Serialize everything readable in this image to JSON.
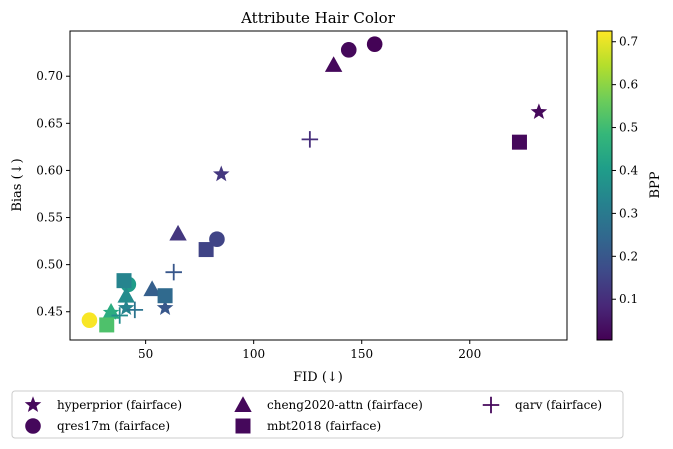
{
  "chart_data": {
    "type": "scatter",
    "title": "Attribute Hair Color",
    "xlabel": "FID (↓)",
    "ylabel": "Bias (↓)",
    "xlim": [
      15,
      245
    ],
    "ylim": [
      0.42,
      0.748
    ],
    "xticks": [
      50,
      100,
      150,
      200
    ],
    "yticks": [
      0.45,
      0.5,
      0.55,
      0.6,
      0.65,
      0.7
    ],
    "colorbar": {
      "label": "BPP",
      "colormap": "viridis",
      "range": [
        0.005,
        0.725
      ],
      "ticks": [
        0.1,
        0.2,
        0.3,
        0.4,
        0.5,
        0.6,
        0.7
      ]
    },
    "legend_placement": "below plot, 3 columns",
    "series": [
      {
        "name": "hyperprior (fairface)",
        "marker": "star",
        "points": [
          {
            "x": 232,
            "y": 0.662,
            "bpp": 0.02
          },
          {
            "x": 85,
            "y": 0.596,
            "bpp": 0.12
          },
          {
            "x": 59,
            "y": 0.454,
            "bpp": 0.2
          },
          {
            "x": 41,
            "y": 0.454,
            "bpp": 0.33
          },
          {
            "x": 34,
            "y": 0.449,
            "bpp": 0.44
          }
        ]
      },
      {
        "name": "qres17m (fairface)",
        "marker": "circle",
        "points": [
          {
            "x": 156,
            "y": 0.734,
            "bpp": 0.01
          },
          {
            "x": 144,
            "y": 0.728,
            "bpp": 0.02
          },
          {
            "x": 83,
            "y": 0.527,
            "bpp": 0.15
          },
          {
            "x": 42,
            "y": 0.479,
            "bpp": 0.4
          },
          {
            "x": 24,
            "y": 0.441,
            "bpp": 0.72
          }
        ]
      },
      {
        "name": "cheng2020-attn (fairface)",
        "marker": "triangle",
        "points": [
          {
            "x": 137,
            "y": 0.712,
            "bpp": 0.02
          },
          {
            "x": 65,
            "y": 0.533,
            "bpp": 0.12
          },
          {
            "x": 53,
            "y": 0.474,
            "bpp": 0.22
          },
          {
            "x": 41,
            "y": 0.467,
            "bpp": 0.35
          },
          {
            "x": 34,
            "y": 0.45,
            "bpp": 0.45
          }
        ]
      },
      {
        "name": "mbt2018 (fairface)",
        "marker": "square",
        "points": [
          {
            "x": 223,
            "y": 0.63,
            "bpp": 0.02
          },
          {
            "x": 78,
            "y": 0.516,
            "bpp": 0.15
          },
          {
            "x": 59,
            "y": 0.467,
            "bpp": 0.25
          },
          {
            "x": 40,
            "y": 0.483,
            "bpp": 0.33
          },
          {
            "x": 32,
            "y": 0.436,
            "bpp": 0.52
          }
        ]
      },
      {
        "name": "qarv (fairface)",
        "marker": "plus",
        "points": [
          {
            "x": 126,
            "y": 0.633,
            "bpp": 0.1
          },
          {
            "x": 63,
            "y": 0.492,
            "bpp": 0.2
          },
          {
            "x": 45,
            "y": 0.452,
            "bpp": 0.28
          },
          {
            "x": 38,
            "y": 0.446,
            "bpp": 0.35
          }
        ]
      }
    ]
  }
}
